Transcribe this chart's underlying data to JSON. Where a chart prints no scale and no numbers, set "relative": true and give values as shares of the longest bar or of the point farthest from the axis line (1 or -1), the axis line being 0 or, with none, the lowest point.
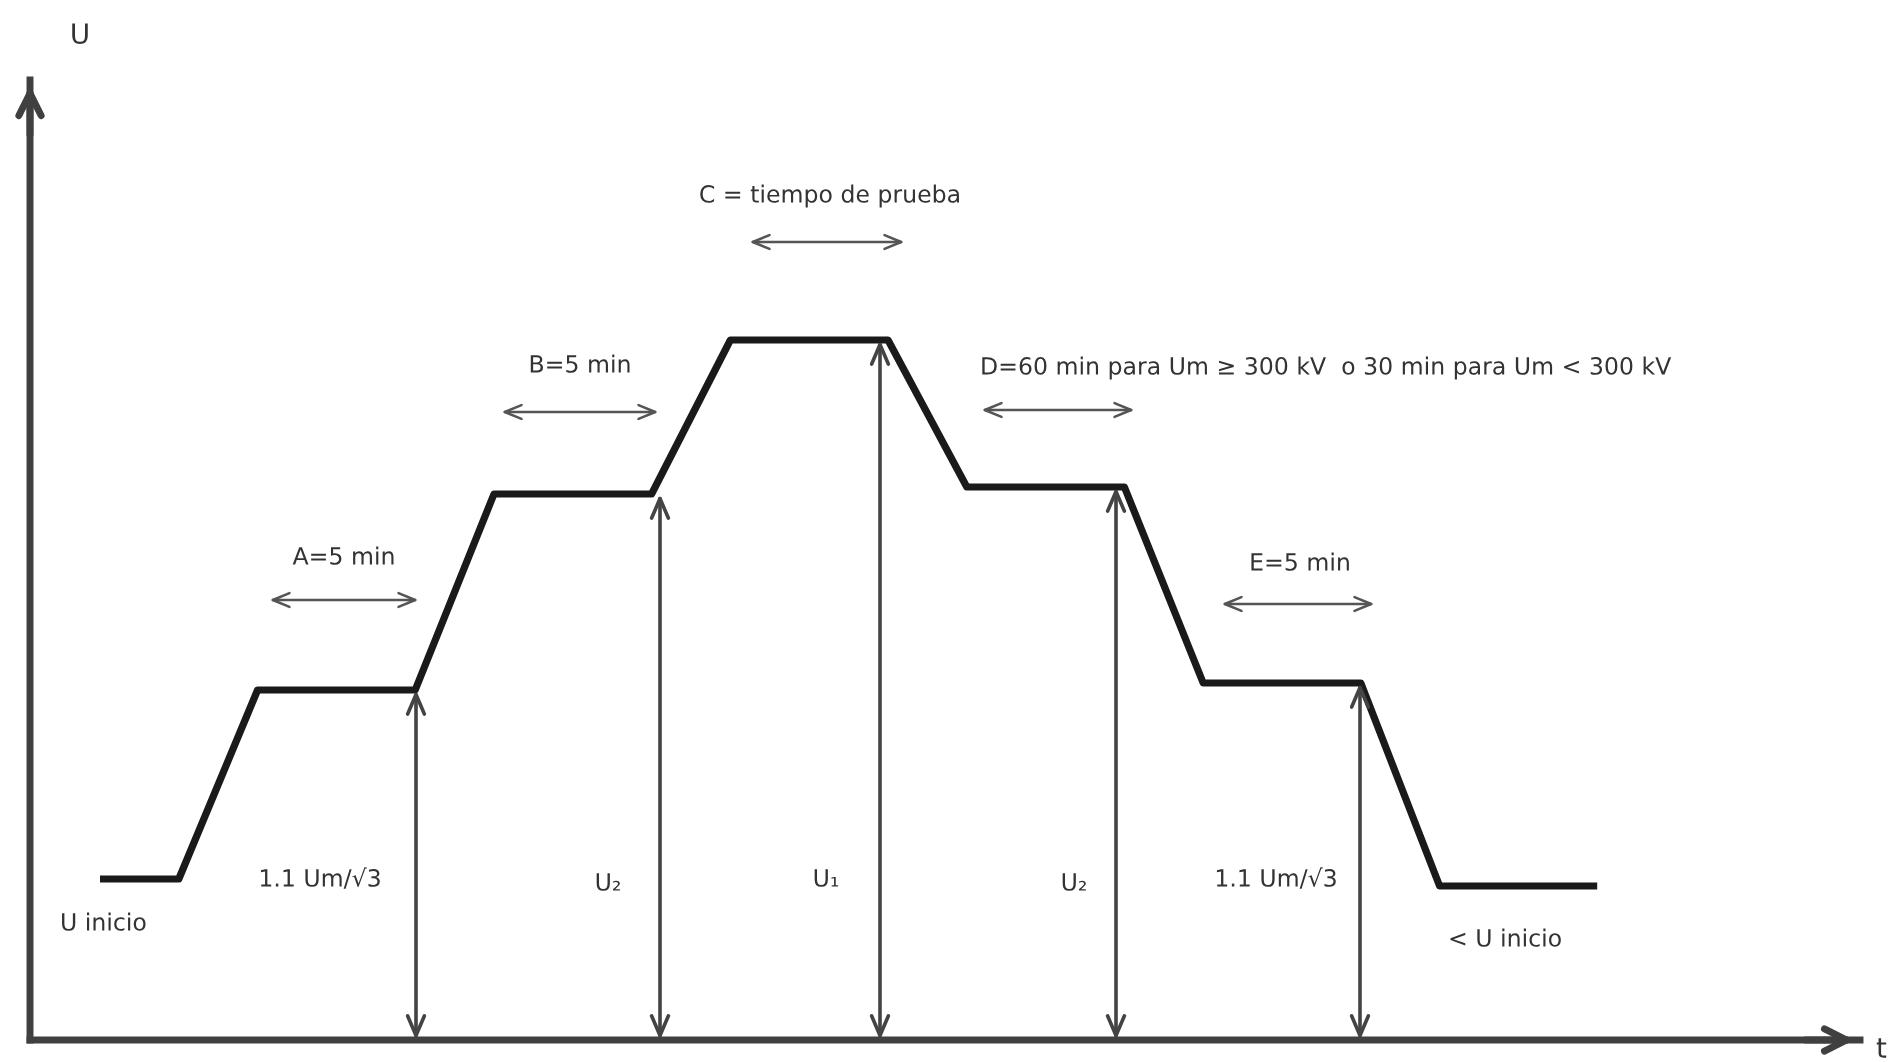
{
  "chart_data": {
    "type": "line",
    "relative": true,
    "color": "#1a1a1a",
    "grid": false,
    "marker": "none",
    "line_style": "solid",
    "categories": [
      null,
      null,
      null,
      null,
      null,
      null,
      null,
      null,
      null,
      null,
      null,
      null,
      null,
      null,
      null,
      null,
      null,
      null,
      null,
      null
    ],
    "values": [
      0.23,
      0.23,
      0.5,
      0.5,
      0.5,
      0.78,
      0.78,
      0.78,
      1,
      1,
      1,
      0.79,
      0.79,
      0.79,
      0.51,
      0.51,
      0.51,
      0.22,
      0.22,
      0.22
    ],
    "annotations": [
      "A=5 min",
      "B=5 min",
      "C = tiempo de prueba",
      "D=60 min para Um ≥ 300 kV  o 30 min para Um < 300 kV",
      "E=5 min",
      "U inicio",
      "1.1 Um/√3",
      "U₂",
      "U₁",
      "U₂",
      "1.1 Um/√3",
      "< U inicio",
      "t",
      "U"
    ]
  }
}
